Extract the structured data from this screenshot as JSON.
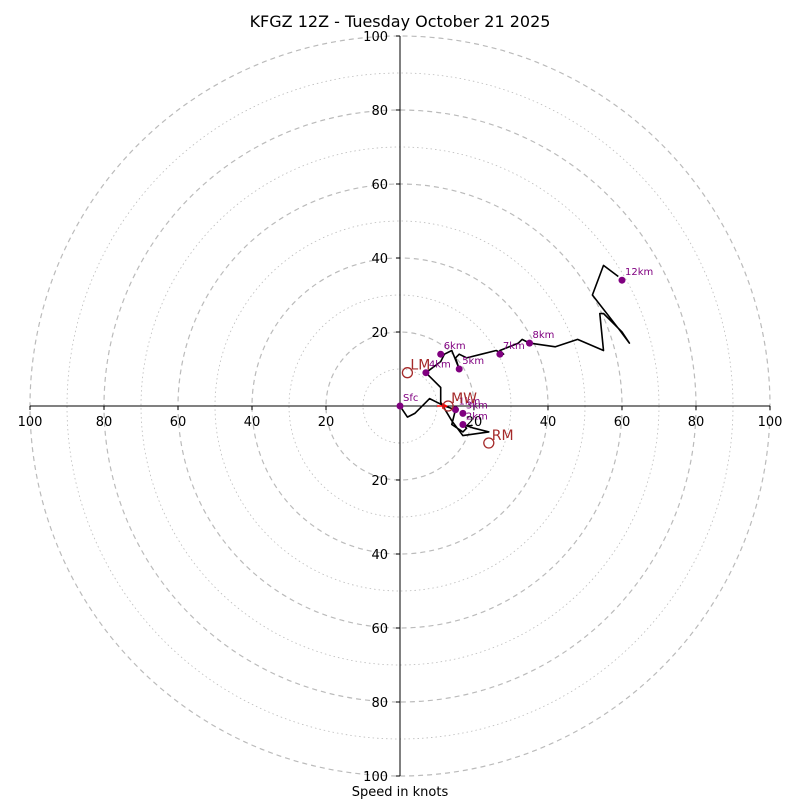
{
  "chart_data": {
    "type": "line",
    "title": "KFGZ 12Z - Tuesday October 21 2025",
    "xlabel": "Speed in knots",
    "ylabel": "",
    "xlim": [
      -100,
      100
    ],
    "ylim": [
      -100,
      100
    ],
    "ring_labels_x": [
      "100",
      "80",
      "60",
      "40",
      "20",
      "20",
      "40",
      "60",
      "80",
      "100"
    ],
    "ring_labels_y": [
      "100",
      "80",
      "60",
      "40",
      "20",
      "20",
      "40",
      "60",
      "80",
      "100"
    ],
    "grid": true,
    "series": [
      {
        "name": "hodograph",
        "color": "#000000",
        "points": [
          [
            0,
            0
          ],
          [
            2,
            -3
          ],
          [
            4,
            -2
          ],
          [
            7,
            1
          ],
          [
            8,
            2
          ],
          [
            10,
            1
          ],
          [
            12,
            0
          ],
          [
            15,
            -1
          ],
          [
            14,
            -5
          ],
          [
            17,
            -7
          ],
          [
            18,
            -6
          ],
          [
            17,
            -5
          ],
          [
            20,
            -6
          ],
          [
            24,
            -7
          ],
          [
            17,
            -8
          ],
          [
            14,
            -4
          ],
          [
            11,
            1
          ],
          [
            11,
            5
          ],
          [
            8,
            8
          ],
          [
            7,
            9
          ],
          [
            11,
            12
          ],
          [
            12,
            14
          ],
          [
            14,
            15
          ],
          [
            16,
            10
          ],
          [
            15,
            13
          ],
          [
            16,
            14
          ],
          [
            18,
            13
          ],
          [
            22,
            14
          ],
          [
            26,
            15
          ],
          [
            28,
            14
          ],
          [
            27,
            15
          ],
          [
            32,
            17
          ],
          [
            33,
            18
          ],
          [
            35,
            17
          ],
          [
            42,
            16
          ],
          [
            48,
            18
          ],
          [
            55,
            15
          ],
          [
            54,
            25
          ],
          [
            55,
            25
          ],
          [
            58,
            22
          ],
          [
            60,
            20
          ],
          [
            62,
            17
          ],
          [
            59,
            21
          ],
          [
            52,
            30
          ],
          [
            55,
            38
          ],
          [
            59,
            35
          ]
        ]
      }
    ],
    "height_markers": [
      {
        "label": "Sfc",
        "u": 0,
        "v": 0
      },
      {
        "label": "1km",
        "u": 15,
        "v": -1
      },
      {
        "label": "2km",
        "u": 17,
        "v": -5
      },
      {
        "label": "3km",
        "u": 17,
        "v": -2
      },
      {
        "label": "4km",
        "u": 7,
        "v": 9
      },
      {
        "label": "5km",
        "u": 16,
        "v": 10
      },
      {
        "label": "6km",
        "u": 11,
        "v": 14
      },
      {
        "label": "7km",
        "u": 27,
        "v": 14
      },
      {
        "label": "8km",
        "u": 35,
        "v": 17
      },
      {
        "label": "12km",
        "u": 60,
        "v": 34
      }
    ],
    "storm_motion": [
      {
        "label": "LM",
        "u": 2,
        "v": 9
      },
      {
        "label": "MW",
        "u": 13,
        "v": 0
      },
      {
        "label": "RM",
        "u": 24,
        "v": -10
      }
    ],
    "storm_motion_arrow": {
      "from": [
        10,
        0
      ],
      "to": [
        13,
        0
      ],
      "color": "#ff0000"
    },
    "colors": {
      "trace": "#000000",
      "marker": "#800080",
      "storm_motion": "#a52a2a",
      "grid": "#bbbbbb",
      "arrow": "#ff0000"
    }
  }
}
